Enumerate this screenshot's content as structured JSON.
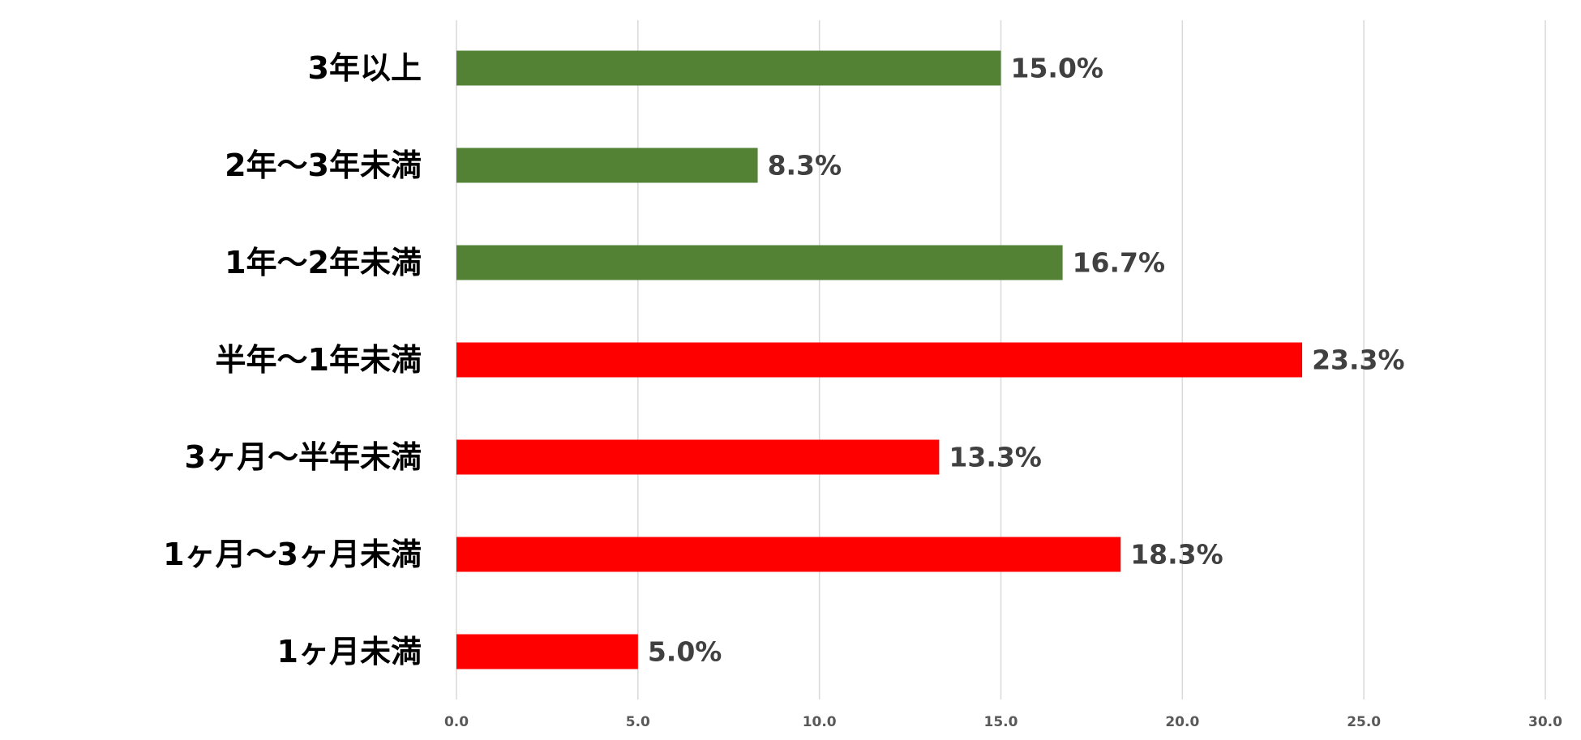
{
  "chart_data": {
    "type": "bar",
    "orientation": "horizontal",
    "categories": [
      "3年以上",
      "2年～3年未満",
      "1年～2年未満",
      "半年～1年未満",
      "3ヶ月～半年未満",
      "1ヶ月～3ヶ月未満",
      "1ヶ月未満"
    ],
    "values": [
      15.0,
      8.3,
      16.7,
      23.3,
      13.3,
      18.3,
      5.0
    ],
    "data_labels": [
      "15.0%",
      "8.3%",
      "16.7%",
      "23.3%",
      "13.3%",
      "18.3%",
      "5.0%"
    ],
    "bar_colors": [
      "#548235",
      "#548235",
      "#548235",
      "#ff0000",
      "#ff0000",
      "#ff0000",
      "#ff0000"
    ],
    "xlim": [
      0,
      30
    ],
    "xticks": [
      "0.0",
      "5.0",
      "10.0",
      "15.0",
      "20.0",
      "25.0",
      "30.0"
    ],
    "grid": "vertical",
    "legend": "none",
    "title": "",
    "xlabel": "",
    "ylabel": ""
  }
}
